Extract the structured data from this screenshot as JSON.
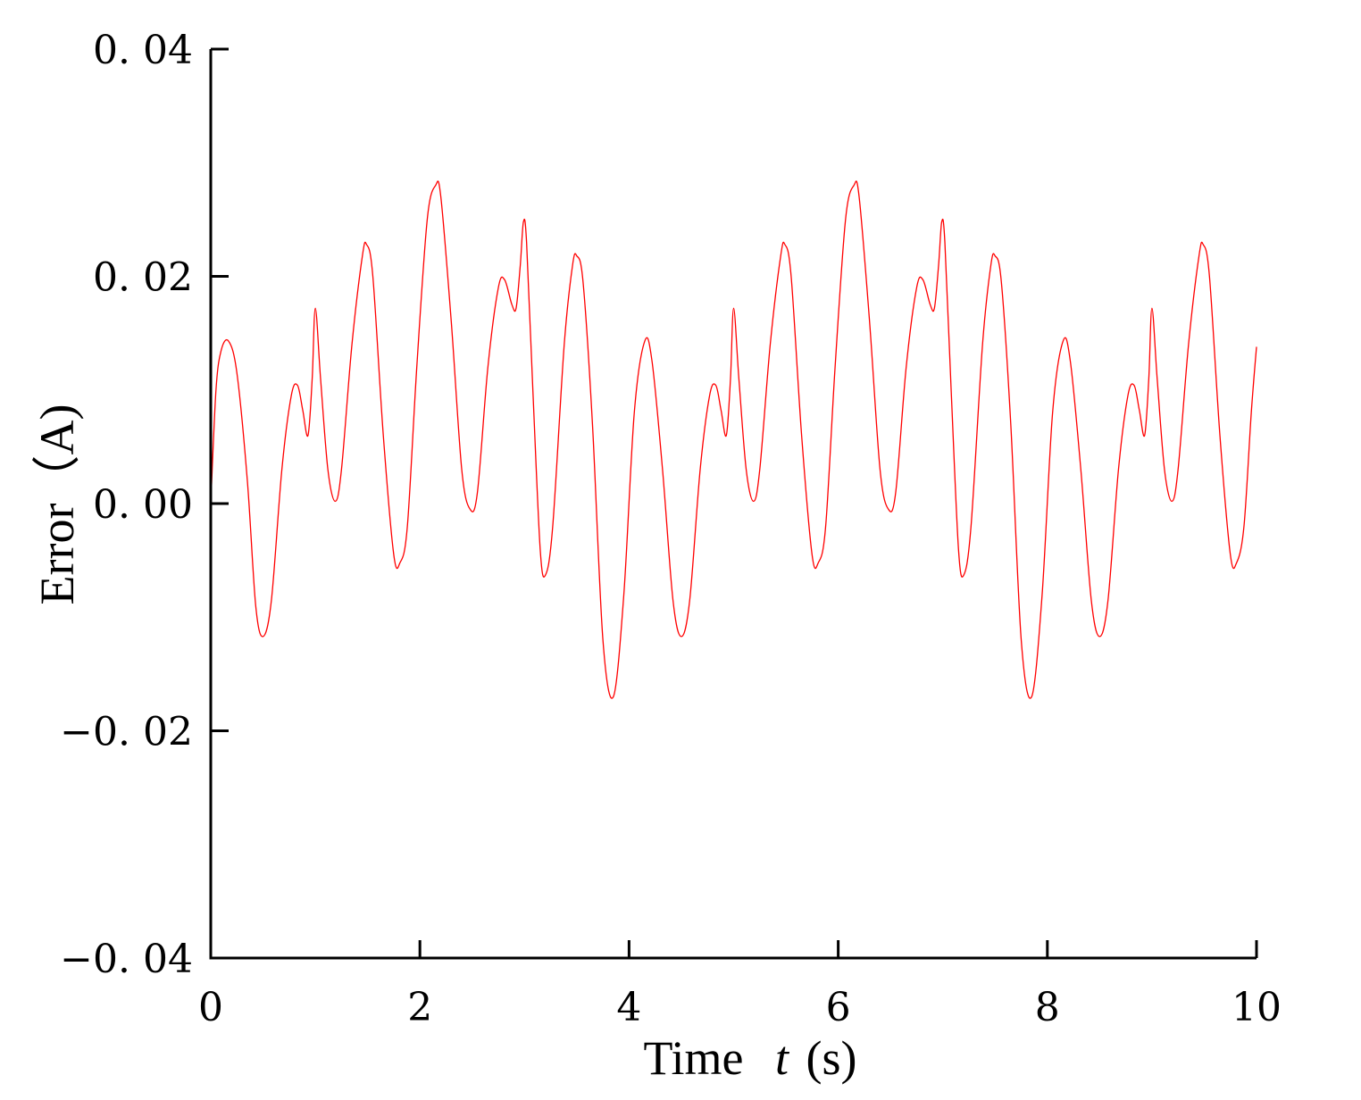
{
  "chart_data": {
    "type": "line",
    "xlabel": "Time",
    "xlabel_var": "t",
    "xlabel_unit": "(s)",
    "ylabel": "Error（A)",
    "xlim": [
      0,
      10
    ],
    "ylim": [
      -0.04,
      0.04
    ],
    "x_ticks": [
      0,
      2,
      4,
      6,
      8,
      10
    ],
    "x_tick_labels": [
      "0",
      "2",
      "4",
      "6",
      "8",
      "10"
    ],
    "y_ticks": [
      -0.04,
      -0.02,
      0.0,
      0.02,
      0.04
    ],
    "y_tick_labels": [
      "−0. 04",
      "−0. 02",
      "0. 00",
      "0. 02",
      "0. 04"
    ],
    "grid": false,
    "series_color": "#ff0000",
    "series": [
      {
        "points": [
          [
            0.0,
            0.0
          ],
          [
            0.05,
            0.01
          ],
          [
            0.1,
            0.0135
          ],
          [
            0.17,
            0.0143
          ],
          [
            0.25,
            0.0115
          ],
          [
            0.35,
            0.002
          ],
          [
            0.43,
            -0.009
          ],
          [
            0.5,
            -0.0117
          ],
          [
            0.58,
            -0.0085
          ],
          [
            0.68,
            0.003
          ],
          [
            0.77,
            0.0095
          ],
          [
            0.83,
            0.0104
          ],
          [
            0.88,
            0.0082
          ],
          [
            0.93,
            0.006
          ],
          [
            0.97,
            0.011
          ],
          [
            1.0,
            0.0172
          ],
          [
            1.05,
            0.011
          ],
          [
            1.12,
            0.003
          ],
          [
            1.19,
            0.0002
          ],
          [
            1.25,
            0.003
          ],
          [
            1.35,
            0.014
          ],
          [
            1.45,
            0.0218
          ],
          [
            1.49,
            0.0228
          ],
          [
            1.55,
            0.02
          ],
          [
            1.65,
            0.006
          ],
          [
            1.75,
            -0.0045
          ],
          [
            1.81,
            -0.0052
          ],
          [
            1.88,
            -0.002
          ],
          [
            1.97,
            0.012
          ],
          [
            2.07,
            0.025
          ],
          [
            2.15,
            0.028
          ],
          [
            2.2,
            0.027
          ],
          [
            2.3,
            0.016
          ],
          [
            2.4,
            0.003
          ],
          [
            2.48,
            -0.0005
          ],
          [
            2.55,
            0.001
          ],
          [
            2.65,
            0.012
          ],
          [
            2.75,
            0.019
          ],
          [
            2.81,
            0.0197
          ],
          [
            2.88,
            0.0175
          ],
          [
            2.92,
            0.0172
          ],
          [
            2.96,
            0.021
          ],
          [
            2.99,
            0.0248
          ],
          [
            3.02,
            0.023
          ],
          [
            3.08,
            0.01
          ],
          [
            3.15,
            -0.004
          ],
          [
            3.2,
            -0.0063
          ],
          [
            3.27,
            -0.002
          ],
          [
            3.38,
            0.014
          ],
          [
            3.46,
            0.021
          ],
          [
            3.5,
            0.0218
          ],
          [
            3.56,
            0.0195
          ],
          [
            3.65,
            0.007
          ],
          [
            3.75,
            -0.012
          ],
          [
            3.85,
            -0.017
          ],
          [
            3.95,
            -0.008
          ],
          [
            4.05,
            0.008
          ],
          [
            4.15,
            0.0143
          ],
          [
            4.22,
            0.0125
          ],
          [
            4.32,
            0.003
          ],
          [
            4.42,
            -0.0085
          ],
          [
            4.5,
            -0.0117
          ],
          [
            4.58,
            -0.0085
          ],
          [
            4.68,
            0.003
          ],
          [
            4.77,
            0.0095
          ],
          [
            4.83,
            0.0104
          ],
          [
            4.88,
            0.0082
          ],
          [
            4.93,
            0.006
          ],
          [
            4.97,
            0.011
          ],
          [
            5.0,
            0.0172
          ],
          [
            5.05,
            0.011
          ],
          [
            5.12,
            0.003
          ],
          [
            5.19,
            0.0002
          ],
          [
            5.25,
            0.003
          ],
          [
            5.35,
            0.014
          ],
          [
            5.45,
            0.0218
          ],
          [
            5.49,
            0.0228
          ],
          [
            5.55,
            0.02
          ],
          [
            5.65,
            0.006
          ],
          [
            5.75,
            -0.0045
          ],
          [
            5.81,
            -0.0052
          ],
          [
            5.88,
            -0.002
          ],
          [
            5.97,
            0.012
          ],
          [
            6.07,
            0.025
          ],
          [
            6.15,
            0.028
          ],
          [
            6.2,
            0.027
          ],
          [
            6.3,
            0.016
          ],
          [
            6.4,
            0.003
          ],
          [
            6.48,
            -0.0005
          ],
          [
            6.55,
            0.001
          ],
          [
            6.65,
            0.012
          ],
          [
            6.75,
            0.019
          ],
          [
            6.81,
            0.0197
          ],
          [
            6.88,
            0.0175
          ],
          [
            6.92,
            0.0172
          ],
          [
            6.96,
            0.021
          ],
          [
            6.99,
            0.0248
          ],
          [
            7.02,
            0.023
          ],
          [
            7.08,
            0.01
          ],
          [
            7.15,
            -0.004
          ],
          [
            7.2,
            -0.0063
          ],
          [
            7.27,
            -0.002
          ],
          [
            7.38,
            0.014
          ],
          [
            7.46,
            0.021
          ],
          [
            7.5,
            0.0218
          ],
          [
            7.56,
            0.0195
          ],
          [
            7.65,
            0.007
          ],
          [
            7.75,
            -0.012
          ],
          [
            7.85,
            -0.017
          ],
          [
            7.95,
            -0.008
          ],
          [
            8.05,
            0.008
          ],
          [
            8.15,
            0.0143
          ],
          [
            8.22,
            0.0125
          ],
          [
            8.32,
            0.003
          ],
          [
            8.42,
            -0.0085
          ],
          [
            8.5,
            -0.0117
          ],
          [
            8.58,
            -0.0085
          ],
          [
            8.68,
            0.003
          ],
          [
            8.77,
            0.0095
          ],
          [
            8.83,
            0.0104
          ],
          [
            8.88,
            0.0082
          ],
          [
            8.93,
            0.006
          ],
          [
            8.97,
            0.011
          ],
          [
            9.0,
            0.0172
          ],
          [
            9.05,
            0.011
          ],
          [
            9.12,
            0.003
          ],
          [
            9.19,
            0.0002
          ],
          [
            9.25,
            0.003
          ],
          [
            9.35,
            0.014
          ],
          [
            9.45,
            0.0218
          ],
          [
            9.49,
            0.0228
          ],
          [
            9.55,
            0.02
          ],
          [
            9.65,
            0.006
          ],
          [
            9.75,
            -0.0045
          ],
          [
            9.81,
            -0.0052
          ],
          [
            9.88,
            -0.002
          ],
          [
            9.95,
            0.008
          ],
          [
            10.0,
            0.0138
          ]
        ]
      }
    ]
  }
}
